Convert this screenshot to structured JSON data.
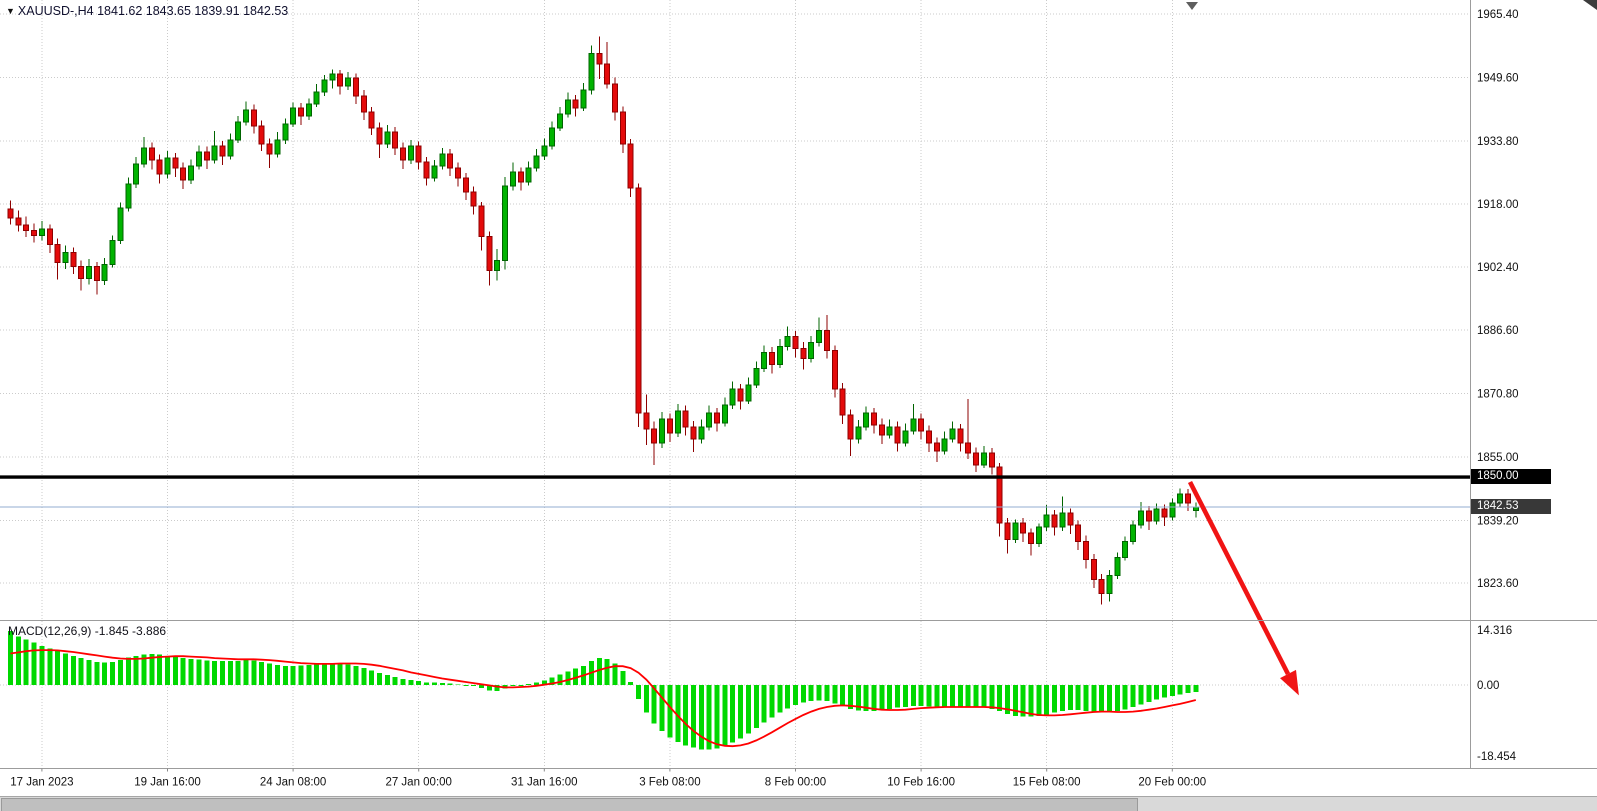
{
  "header": {
    "symbol_marker": "▼",
    "symbol": "XAUUSD-",
    "period": "H4",
    "symbol_line": "XAUUSD-,H4 1841.62 1843.65 1839.91 1842.53",
    "ohlc": {
      "open": "1841.62",
      "high": "1843.65",
      "low": "1839.91",
      "close": "1842.53"
    }
  },
  "colors": {
    "background": "#ffffff",
    "grid": "#cbcbcb",
    "bull": "#00b300",
    "bull_border": "#006400",
    "bear": "#e40b0b",
    "bear_border": "#8e0000",
    "macd_hist": "#00d800",
    "macd_signal": "#ff0000",
    "resistance": "#000000",
    "bid_line": "#93add0",
    "arrow": "#f01414",
    "axis_text": "#111111",
    "separator": "#9c9c9c"
  },
  "chart_data": {
    "type": "candlestick",
    "title": "XAUUSD-,H4",
    "price_axis": {
      "side": "right",
      "values": [
        1965.4,
        1949.6,
        1933.8,
        1918.0,
        1902.4,
        1886.6,
        1870.8,
        1855.0,
        1839.2,
        1823.6
      ]
    },
    "x_axis": {
      "labels": [
        {
          "index": 4,
          "label": "17 Jan 2023"
        },
        {
          "index": 20,
          "label": "19 Jan 16:00"
        },
        {
          "index": 36,
          "label": "24 Jan 08:00"
        },
        {
          "index": 52,
          "label": "27 Jan 00:00"
        },
        {
          "index": 68,
          "label": "31 Jan 16:00"
        },
        {
          "index": 84,
          "label": "3 Feb 08:00"
        },
        {
          "index": 100,
          "label": "8 Feb 00:00"
        },
        {
          "index": 116,
          "label": "10 Feb 16:00"
        },
        {
          "index": 132,
          "label": "15 Feb 08:00"
        },
        {
          "index": 148,
          "label": "20 Feb 00:00"
        }
      ]
    },
    "candles_ohlc": [
      [
        1916.8,
        1918.9,
        1912.9,
        1914.5
      ],
      [
        1914.5,
        1916.4,
        1911.2,
        1912.8
      ],
      [
        1912.8,
        1914.9,
        1909.8,
        1911.5
      ],
      [
        1911.5,
        1913.2,
        1908.4,
        1910.2
      ],
      [
        1910.2,
        1913.8,
        1909.0,
        1911.8
      ],
      [
        1911.8,
        1913.0,
        1905.9,
        1908.0
      ],
      [
        1908.0,
        1909.4,
        1899.2,
        1903.5
      ],
      [
        1903.5,
        1907.7,
        1901.8,
        1906.0
      ],
      [
        1906.0,
        1907.2,
        1900.6,
        1902.5
      ],
      [
        1902.5,
        1904.0,
        1896.5,
        1899.5
      ],
      [
        1899.5,
        1904.3,
        1898.0,
        1902.5
      ],
      [
        1902.5,
        1903.6,
        1895.5,
        1899.0
      ],
      [
        1899.0,
        1904.6,
        1897.9,
        1903.0
      ],
      [
        1903.0,
        1910.2,
        1902.2,
        1909.0
      ],
      [
        1909.0,
        1918.4,
        1908.1,
        1917.0
      ],
      [
        1917.0,
        1924.6,
        1916.2,
        1923.0
      ],
      [
        1923.0,
        1929.8,
        1922.0,
        1928.0
      ],
      [
        1928.0,
        1934.8,
        1927.2,
        1932.0
      ],
      [
        1932.0,
        1933.4,
        1926.6,
        1929.0
      ],
      [
        1929.0,
        1930.4,
        1923.2,
        1925.5
      ],
      [
        1925.5,
        1931.2,
        1924.4,
        1929.5
      ],
      [
        1929.5,
        1930.8,
        1924.8,
        1927.0
      ],
      [
        1927.0,
        1928.4,
        1921.8,
        1924.0
      ],
      [
        1924.0,
        1929.2,
        1923.0,
        1927.5
      ],
      [
        1927.5,
        1932.6,
        1926.6,
        1931.0
      ],
      [
        1931.0,
        1932.4,
        1926.8,
        1929.0
      ],
      [
        1929.0,
        1936.2,
        1928.2,
        1932.5
      ],
      [
        1932.5,
        1933.8,
        1927.8,
        1930.0
      ],
      [
        1930.0,
        1935.6,
        1929.2,
        1934.0
      ],
      [
        1934.0,
        1940.0,
        1933.2,
        1938.5
      ],
      [
        1938.5,
        1943.6,
        1937.6,
        1941.5
      ],
      [
        1941.5,
        1942.8,
        1935.6,
        1937.5
      ],
      [
        1937.5,
        1938.8,
        1931.2,
        1933.0
      ],
      [
        1933.0,
        1934.4,
        1927.0,
        1930.5
      ],
      [
        1930.5,
        1936.0,
        1929.6,
        1934.0
      ],
      [
        1934.0,
        1939.4,
        1933.0,
        1938.0
      ],
      [
        1938.0,
        1943.4,
        1937.2,
        1942.0
      ],
      [
        1942.0,
        1943.2,
        1937.8,
        1940.0
      ],
      [
        1940.0,
        1944.4,
        1939.0,
        1943.0
      ],
      [
        1943.0,
        1948.0,
        1942.2,
        1946.0
      ],
      [
        1946.0,
        1950.2,
        1945.0,
        1949.0
      ],
      [
        1949.0,
        1951.6,
        1946.8,
        1950.5
      ],
      [
        1950.5,
        1951.4,
        1945.4,
        1947.5
      ],
      [
        1947.5,
        1951.0,
        1946.4,
        1949.5
      ],
      [
        1949.5,
        1950.6,
        1943.0,
        1945.0
      ],
      [
        1945.0,
        1946.4,
        1939.0,
        1941.0
      ],
      [
        1941.0,
        1942.2,
        1935.2,
        1937.0
      ],
      [
        1937.0,
        1938.4,
        1929.5,
        1933.0
      ],
      [
        1933.0,
        1937.8,
        1932.0,
        1936.0
      ],
      [
        1936.0,
        1937.2,
        1930.2,
        1932.0
      ],
      [
        1932.0,
        1933.4,
        1926.8,
        1929.0
      ],
      [
        1929.0,
        1934.0,
        1928.0,
        1932.5
      ],
      [
        1932.5,
        1933.6,
        1926.6,
        1928.5
      ],
      [
        1928.5,
        1929.8,
        1922.6,
        1924.5
      ],
      [
        1924.5,
        1929.0,
        1923.6,
        1927.5
      ],
      [
        1927.5,
        1932.0,
        1926.6,
        1930.5
      ],
      [
        1930.5,
        1931.8,
        1925.0,
        1927.0
      ],
      [
        1927.0,
        1928.4,
        1922.4,
        1924.5
      ],
      [
        1924.5,
        1925.8,
        1919.0,
        1921.0
      ],
      [
        1921.0,
        1922.4,
        1915.4,
        1917.5
      ],
      [
        1917.5,
        1918.6,
        1906.5,
        1910.0
      ],
      [
        1910.0,
        1911.2,
        1897.8,
        1901.5
      ],
      [
        1901.5,
        1906.8,
        1899.0,
        1904.0
      ],
      [
        1904.0,
        1924.8,
        1901.7,
        1922.5
      ],
      [
        1922.5,
        1928.4,
        1921.4,
        1926.0
      ],
      [
        1926.0,
        1927.2,
        1921.4,
        1923.5
      ],
      [
        1923.5,
        1928.6,
        1922.6,
        1927.0
      ],
      [
        1927.0,
        1931.8,
        1926.2,
        1930.0
      ],
      [
        1930.0,
        1934.4,
        1929.0,
        1932.5
      ],
      [
        1932.5,
        1938.6,
        1931.6,
        1937.0
      ],
      [
        1937.0,
        1942.2,
        1936.2,
        1940.5
      ],
      [
        1940.5,
        1945.8,
        1939.6,
        1944.0
      ],
      [
        1944.0,
        1945.2,
        1939.8,
        1942.0
      ],
      [
        1942.0,
        1948.2,
        1941.2,
        1946.5
      ],
      [
        1946.5,
        1957.5,
        1945.4,
        1955.5
      ],
      [
        1955.5,
        1959.8,
        1949.2,
        1953.0
      ],
      [
        1953.0,
        1958.4,
        1946.8,
        1948.0
      ],
      [
        1948.0,
        1949.6,
        1938.8,
        1941.0
      ],
      [
        1941.0,
        1942.4,
        1930.8,
        1933.0
      ],
      [
        1933.0,
        1934.2,
        1919.8,
        1922.0
      ],
      [
        1922.0,
        1923.2,
        1862.5,
        1866.0
      ],
      [
        1866.0,
        1870.6,
        1858.0,
        1862.0
      ],
      [
        1862.0,
        1863.8,
        1853.0,
        1858.5
      ],
      [
        1858.5,
        1866.2,
        1857.2,
        1864.5
      ],
      [
        1864.5,
        1865.8,
        1858.8,
        1861.0
      ],
      [
        1861.0,
        1868.2,
        1860.0,
        1866.5
      ],
      [
        1866.5,
        1867.8,
        1860.4,
        1862.5
      ],
      [
        1862.5,
        1864.0,
        1856.2,
        1859.5
      ],
      [
        1859.5,
        1864.4,
        1858.4,
        1862.5
      ],
      [
        1862.5,
        1867.8,
        1861.6,
        1866.0
      ],
      [
        1866.0,
        1867.2,
        1861.4,
        1863.5
      ],
      [
        1863.5,
        1869.8,
        1862.6,
        1868.0
      ],
      [
        1868.0,
        1873.8,
        1867.0,
        1872.0
      ],
      [
        1872.0,
        1873.2,
        1866.8,
        1869.0
      ],
      [
        1869.0,
        1874.8,
        1868.2,
        1873.0
      ],
      [
        1873.0,
        1878.8,
        1872.2,
        1877.0
      ],
      [
        1877.0,
        1882.8,
        1876.2,
        1881.0
      ],
      [
        1881.0,
        1882.4,
        1875.8,
        1878.0
      ],
      [
        1878.0,
        1884.4,
        1877.2,
        1882.5
      ],
      [
        1882.5,
        1887.5,
        1881.6,
        1885.0
      ],
      [
        1885.0,
        1886.4,
        1879.8,
        1882.0
      ],
      [
        1882.0,
        1883.6,
        1876.8,
        1879.5
      ],
      [
        1879.5,
        1885.2,
        1878.6,
        1883.5
      ],
      [
        1883.5,
        1889.8,
        1882.6,
        1886.5
      ],
      [
        1886.5,
        1890.4,
        1879.6,
        1881.5
      ],
      [
        1881.5,
        1882.8,
        1869.8,
        1872.0
      ],
      [
        1872.0,
        1873.4,
        1863.2,
        1865.5
      ],
      [
        1865.5,
        1866.8,
        1855.2,
        1859.5
      ],
      [
        1859.5,
        1864.2,
        1858.4,
        1862.5
      ],
      [
        1862.5,
        1867.6,
        1861.6,
        1866.0
      ],
      [
        1866.0,
        1867.2,
        1860.8,
        1863.0
      ],
      [
        1863.0,
        1864.6,
        1858.2,
        1860.5
      ],
      [
        1860.5,
        1864.4,
        1859.6,
        1862.5
      ],
      [
        1862.5,
        1863.8,
        1856.4,
        1858.5
      ],
      [
        1858.5,
        1863.4,
        1857.6,
        1861.5
      ],
      [
        1861.5,
        1868.2,
        1860.6,
        1864.5
      ],
      [
        1864.5,
        1865.8,
        1859.4,
        1861.5
      ],
      [
        1861.5,
        1862.8,
        1856.2,
        1858.5
      ],
      [
        1858.5,
        1859.8,
        1853.8,
        1856.5
      ],
      [
        1856.5,
        1861.4,
        1855.6,
        1859.5
      ],
      [
        1859.5,
        1863.8,
        1858.6,
        1862.0
      ],
      [
        1862.0,
        1863.2,
        1856.4,
        1858.5
      ],
      [
        1858.5,
        1869.5,
        1854.5,
        1856.0
      ],
      [
        1856.0,
        1857.4,
        1851.2,
        1853.0
      ],
      [
        1853.0,
        1857.8,
        1852.2,
        1856.0
      ],
      [
        1856.0,
        1857.2,
        1850.6,
        1852.5
      ],
      [
        1852.5,
        1853.5,
        1835.2,
        1838.5
      ],
      [
        1838.5,
        1839.8,
        1831.0,
        1834.5
      ],
      [
        1834.5,
        1839.4,
        1833.6,
        1838.5
      ],
      [
        1838.5,
        1839.8,
        1833.8,
        1836.0
      ],
      [
        1836.0,
        1837.2,
        1830.5,
        1833.5
      ],
      [
        1833.5,
        1838.4,
        1832.6,
        1837.5
      ],
      [
        1837.5,
        1843.0,
        1836.6,
        1840.5
      ],
      [
        1840.5,
        1841.8,
        1835.4,
        1837.5
      ],
      [
        1837.5,
        1845.2,
        1836.6,
        1841.0
      ],
      [
        1841.0,
        1842.2,
        1835.8,
        1838.0
      ],
      [
        1838.0,
        1839.2,
        1831.8,
        1834.0
      ],
      [
        1834.0,
        1835.4,
        1827.2,
        1829.5
      ],
      [
        1829.5,
        1830.8,
        1822.4,
        1824.5
      ],
      [
        1824.5,
        1825.8,
        1818.3,
        1821.0
      ],
      [
        1821.0,
        1826.8,
        1819.0,
        1825.5
      ],
      [
        1825.5,
        1831.2,
        1824.6,
        1830.0
      ],
      [
        1830.0,
        1835.2,
        1829.2,
        1834.0
      ],
      [
        1834.0,
        1839.2,
        1833.2,
        1838.0
      ],
      [
        1838.0,
        1843.8,
        1837.2,
        1841.5
      ],
      [
        1841.5,
        1842.8,
        1836.8,
        1839.0
      ],
      [
        1839.0,
        1843.4,
        1838.2,
        1842.0
      ],
      [
        1842.0,
        1843.2,
        1837.8,
        1840.0
      ],
      [
        1840.0,
        1844.6,
        1839.2,
        1843.5
      ],
      [
        1843.5,
        1847.2,
        1842.6,
        1845.8
      ],
      [
        1845.8,
        1847.0,
        1841.6,
        1843.5
      ],
      [
        1841.62,
        1843.65,
        1839.91,
        1842.53
      ]
    ],
    "overlays": {
      "resistance_line_price": 1850.0,
      "resistance_label": "1850.00",
      "bid_price": 1842.53,
      "bid_label": "1842.53",
      "arrow": {
        "description": "thick red arrow pointing down-right from the 1850 level toward the MACD zero area",
        "color": "#f01414"
      }
    },
    "macd": {
      "label": "MACD(12,26,9) -1.845 -3.886",
      "params": "12,26,9",
      "value_main": -1.845,
      "value_signal": -3.886,
      "scale_max": 14.316,
      "scale_min": -18.454,
      "scale_labels": [
        "14.316",
        "0.00",
        "-18.454"
      ],
      "histogram": [
        14.0,
        12.6,
        11.8,
        11.0,
        10.2,
        9.5,
        8.8,
        8.2,
        7.6,
        7.0,
        6.5,
        6.0,
        5.8,
        6.0,
        6.5,
        7.1,
        7.6,
        8.0,
        8.1,
        7.9,
        7.6,
        7.3,
        7.0,
        6.8,
        6.6,
        6.4,
        6.3,
        6.2,
        6.2,
        6.3,
        6.5,
        6.4,
        6.0,
        5.6,
        5.2,
        5.0,
        5.0,
        5.1,
        5.2,
        5.4,
        5.6,
        5.7,
        5.6,
        5.4,
        5.0,
        4.4,
        3.8,
        3.1,
        2.6,
        2.1,
        1.6,
        1.3,
        1.0,
        0.7,
        0.6,
        0.5,
        0.4,
        0.2,
        0.0,
        -0.3,
        -0.8,
        -1.4,
        -1.6,
        -0.9,
        -0.3,
        0.0,
        0.3,
        0.7,
        1.2,
        1.9,
        2.7,
        3.5,
        4.3,
        5.0,
        6.2,
        7.0,
        6.8,
        5.6,
        3.6,
        0.8,
        -3.6,
        -7.2,
        -10.0,
        -12.0,
        -13.6,
        -14.8,
        -15.7,
        -16.3,
        -16.7,
        -16.8,
        -16.5,
        -15.9,
        -15.0,
        -13.9,
        -12.6,
        -11.2,
        -9.8,
        -8.4,
        -7.2,
        -6.1,
        -5.2,
        -4.6,
        -4.2,
        -4.0,
        -4.2,
        -4.8,
        -5.5,
        -6.2,
        -6.6,
        -6.8,
        -6.7,
        -6.5,
        -6.2,
        -5.9,
        -5.7,
        -5.5,
        -5.5,
        -5.6,
        -5.7,
        -5.8,
        -5.8,
        -5.7,
        -5.6,
        -5.7,
        -5.9,
        -6.2,
        -6.8,
        -7.5,
        -8.0,
        -8.2,
        -8.2,
        -8.0,
        -7.6,
        -7.1,
        -6.7,
        -6.5,
        -6.5,
        -6.7,
        -7.0,
        -7.2,
        -7.1,
        -6.8,
        -6.3,
        -5.7,
        -5.0,
        -4.4,
        -3.8,
        -3.3,
        -2.8,
        -2.4,
        -2.1,
        -1.845
      ],
      "signal": [
        8.2,
        8.5,
        8.8,
        9.0,
        9.1,
        9.1,
        9.0,
        8.8,
        8.6,
        8.3,
        8.0,
        7.7,
        7.4,
        7.1,
        6.9,
        6.8,
        6.8,
        6.9,
        7.1,
        7.3,
        7.4,
        7.5,
        7.5,
        7.4,
        7.3,
        7.2,
        7.0,
        6.9,
        6.8,
        6.7,
        6.7,
        6.7,
        6.6,
        6.5,
        6.3,
        6.1,
        5.9,
        5.7,
        5.6,
        5.5,
        5.5,
        5.5,
        5.6,
        5.6,
        5.6,
        5.5,
        5.3,
        5.0,
        4.6,
        4.2,
        3.8,
        3.3,
        2.9,
        2.5,
        2.1,
        1.7,
        1.4,
        1.1,
        0.8,
        0.5,
        0.2,
        -0.1,
        -0.4,
        -0.6,
        -0.6,
        -0.5,
        -0.4,
        -0.2,
        0.1,
        0.4,
        0.8,
        1.3,
        1.9,
        2.5,
        3.2,
        3.9,
        4.5,
        4.9,
        4.9,
        4.4,
        3.2,
        1.4,
        -0.9,
        -3.3,
        -5.7,
        -8.0,
        -10.1,
        -11.9,
        -13.4,
        -14.6,
        -15.4,
        -15.8,
        -15.9,
        -15.7,
        -15.2,
        -14.4,
        -13.4,
        -12.3,
        -11.1,
        -9.9,
        -8.8,
        -7.8,
        -6.9,
        -6.2,
        -5.7,
        -5.4,
        -5.3,
        -5.4,
        -5.6,
        -5.9,
        -6.2,
        -6.4,
        -6.5,
        -6.5,
        -6.4,
        -6.2,
        -6.0,
        -5.9,
        -5.8,
        -5.7,
        -5.7,
        -5.7,
        -5.7,
        -5.7,
        -5.7,
        -5.8,
        -6.0,
        -6.3,
        -6.7,
        -7.1,
        -7.5,
        -7.8,
        -7.9,
        -7.9,
        -7.8,
        -7.6,
        -7.4,
        -7.2,
        -7.0,
        -6.9,
        -6.9,
        -7.0,
        -7.0,
        -6.9,
        -6.7,
        -6.4,
        -6.1,
        -5.7,
        -5.3,
        -4.9,
        -4.4,
        -3.886
      ]
    }
  }
}
